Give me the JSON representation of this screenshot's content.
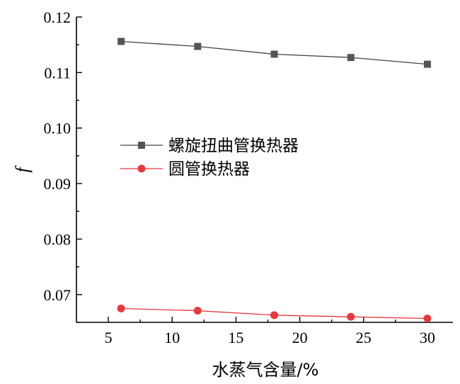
{
  "chart_data": {
    "type": "line",
    "xlabel": "水蒸气含量/%",
    "ylabel": "f",
    "xlim": [
      2.5,
      32
    ],
    "ylim": [
      0.065,
      0.12
    ],
    "x_ticks": [
      5,
      10,
      15,
      20,
      25,
      30
    ],
    "y_ticks": [
      0.07,
      0.08,
      0.09,
      0.1,
      0.11,
      0.12
    ],
    "y_tick_labels": [
      "0.07",
      "0.08",
      "0.09",
      "0.10",
      "0.11",
      "0.12"
    ],
    "legend_placement": "center-left",
    "grid": false,
    "series": [
      {
        "name": "螺旋扭曲管换热器",
        "marker": "square",
        "color": "#555555",
        "line_color": "#444444",
        "x": [
          6,
          12,
          18,
          24,
          30
        ],
        "values": [
          0.1156,
          0.1147,
          0.1133,
          0.1127,
          0.1115
        ]
      },
      {
        "name": "圆管换热器",
        "marker": "circle",
        "color": "#e8383d",
        "line_color": "#e8383d",
        "x": [
          6,
          12,
          18,
          24,
          30
        ],
        "values": [
          0.0675,
          0.0671,
          0.0663,
          0.066,
          0.0657
        ]
      }
    ]
  }
}
